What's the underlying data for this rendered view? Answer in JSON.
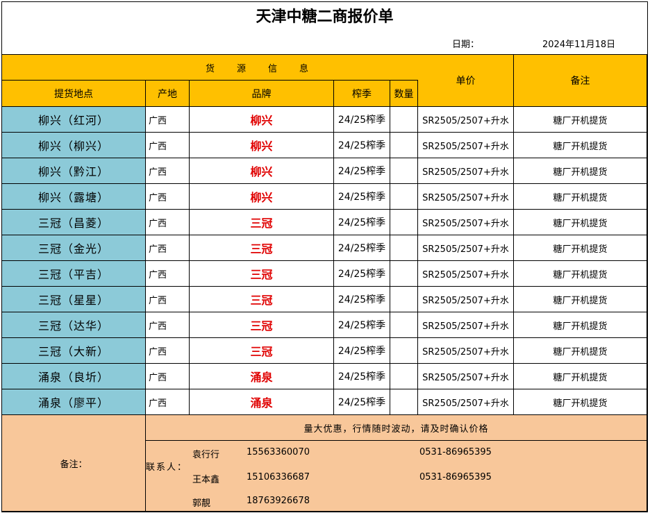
{
  "title": "天津中糖二商报价单",
  "date_label": "日期：",
  "date_value": "2024年11月18日",
  "header": {
    "group": "货　　源　　信　　息",
    "location": "提货地点",
    "origin": "产地",
    "brand": "品牌",
    "season": "榨季",
    "quantity": "数量",
    "price": "单价",
    "remark": "备注"
  },
  "rows": [
    {
      "location": "柳兴（红河）",
      "origin": "广西",
      "brand": "柳兴",
      "season": "24/25榨季",
      "quantity": "",
      "price": "SR2505/2507+升水",
      "remark": "糖厂开机提货"
    },
    {
      "location": "柳兴（柳兴）",
      "origin": "广西",
      "brand": "柳兴",
      "season": "24/25榨季",
      "quantity": "",
      "price": "SR2505/2507+升水",
      "remark": "糖厂开机提货"
    },
    {
      "location": "柳兴（黔江）",
      "origin": "广西",
      "brand": "柳兴",
      "season": "24/25榨季",
      "quantity": "",
      "price": "SR2505/2507+升水",
      "remark": "糖厂开机提货"
    },
    {
      "location": "柳兴（露塘）",
      "origin": "广西",
      "brand": "柳兴",
      "season": "24/25榨季",
      "quantity": "",
      "price": "SR2505/2507+升水",
      "remark": "糖厂开机提货"
    },
    {
      "location": "三冠（昌菱）",
      "origin": "广西",
      "brand": "三冠",
      "season": "24/25榨季",
      "quantity": "",
      "price": "SR2505/2507+升水",
      "remark": "糖厂开机提货"
    },
    {
      "location": "三冠（金光）",
      "origin": "广西",
      "brand": "三冠",
      "season": "24/25榨季",
      "quantity": "",
      "price": "SR2505/2507+升水",
      "remark": "糖厂开机提货"
    },
    {
      "location": "三冠（平吉）",
      "origin": "广西",
      "brand": "三冠",
      "season": "24/25榨季",
      "quantity": "",
      "price": "SR2505/2507+升水",
      "remark": "糖厂开机提货"
    },
    {
      "location": "三冠（星星）",
      "origin": "广西",
      "brand": "三冠",
      "season": "24/25榨季",
      "quantity": "",
      "price": "SR2505/2507+升水",
      "remark": "糖厂开机提货"
    },
    {
      "location": "三冠（达华）",
      "origin": "广西",
      "brand": "三冠",
      "season": "24/25榨季",
      "quantity": "",
      "price": "SR2505/2507+升水",
      "remark": "糖厂开机提货"
    },
    {
      "location": "三冠（大新）",
      "origin": "广西",
      "brand": "三冠",
      "season": "24/25榨季",
      "quantity": "",
      "price": "SR2505/2507+升水",
      "remark": "糖厂开机提货"
    },
    {
      "location": "涌泉（良圻）",
      "origin": "广西",
      "brand": "涌泉",
      "season": "24/25榨季",
      "quantity": "",
      "price": "SR2505/2507+升水",
      "remark": "糖厂开机提货"
    },
    {
      "location": "涌泉（廖平）",
      "origin": "广西",
      "brand": "涌泉",
      "season": "24/25榨季",
      "quantity": "",
      "price": "SR2505/2507+升水",
      "remark": "糖厂开机提货"
    }
  ],
  "footer": {
    "label": "备注：",
    "notice": "量大优惠，行情随时波动，请及时确认价格",
    "contact_label": "联系人：",
    "contacts": [
      {
        "name": "袁行行",
        "mobile": "15563360070",
        "phone": "0531-86965395"
      },
      {
        "name": "王本鑫",
        "mobile": "15106336687",
        "phone": "0531-86965395"
      },
      {
        "name": "郭靚",
        "mobile": "18763926678",
        "phone": ""
      }
    ]
  },
  "colors": {
    "header_bg": "#ffc000",
    "location_bg": "#8ccad8",
    "brand_text": "#e00000",
    "footer_bg": "#f8c79a"
  }
}
